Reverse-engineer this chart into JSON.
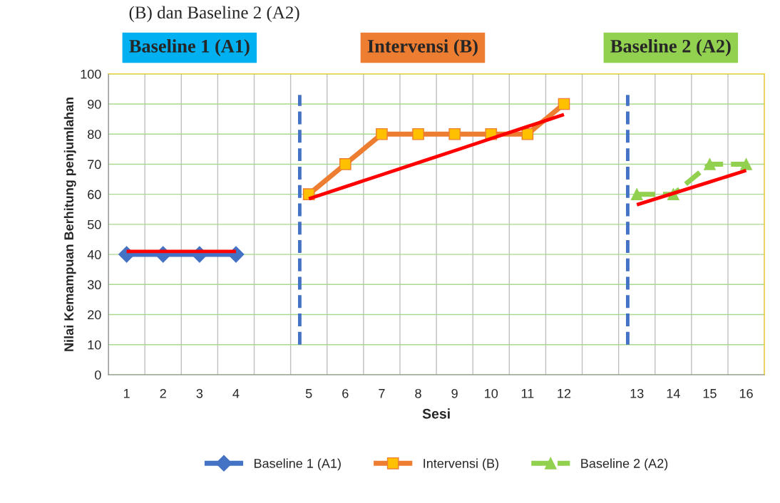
{
  "chart_data": {
    "type": "line",
    "title": "(B) dan Baseline 2 (A2)",
    "xlabel": "Sesi",
    "ylabel": "Nilai Kemampuan Berhitung penjumlahan",
    "categories": [
      "1",
      "2",
      "3",
      "4",
      null,
      "5",
      "6",
      "7",
      "8",
      "9",
      "10",
      "11",
      "12",
      null,
      "13",
      "14",
      "15",
      "16"
    ],
    "series": [
      {
        "name": "Baseline 1 (A1)",
        "color": "#4472c4",
        "marker": "diamond",
        "values": [
          40,
          40,
          40,
          40,
          null,
          null,
          null,
          null,
          null,
          null,
          null,
          null,
          null,
          null,
          null,
          null,
          null,
          null
        ]
      },
      {
        "name": "Intervensi (B)",
        "color": "#ed7d31",
        "marker": "square",
        "values": [
          null,
          null,
          null,
          null,
          null,
          60,
          70,
          80,
          80,
          80,
          80,
          80,
          90,
          null,
          null,
          null,
          null,
          null
        ]
      },
      {
        "name": "Baseline 2 (A2)",
        "color": "#92d050",
        "marker": "triangle",
        "line_style": "dashed",
        "values": [
          null,
          null,
          null,
          null,
          null,
          null,
          null,
          null,
          null,
          null,
          null,
          null,
          null,
          null,
          60,
          60,
          70,
          70
        ]
      },
      {
        "color": "#ff0000",
        "marker": "none",
        "values": [
          41,
          41,
          41,
          41,
          null,
          null,
          null,
          null,
          null,
          null,
          null,
          null,
          null,
          null,
          null,
          null,
          null,
          null
        ]
      },
      {
        "color": "#ff0000",
        "marker": "none",
        "values": [
          null,
          null,
          null,
          null,
          null,
          58.5,
          62.5,
          66.5,
          70.5,
          74.5,
          78.5,
          82.5,
          86.5,
          null,
          null,
          null,
          null,
          null
        ]
      },
      {
        "color": "#ff0000",
        "marker": "none",
        "values": [
          null,
          null,
          null,
          null,
          null,
          null,
          null,
          null,
          null,
          null,
          null,
          null,
          null,
          null,
          56.5,
          60.3,
          64.1,
          67.9
        ]
      }
    ],
    "ref_lines": [
      {
        "axis": "x",
        "value": "5",
        "color": "#4472c4",
        "line_style": "dashed"
      },
      {
        "axis": "x",
        "value": "13",
        "color": "#4472c4",
        "line_style": "dashed"
      }
    ],
    "annotations": [
      "Baseline 1 (A1)",
      "Intervensi (B)",
      "Baseline 2 (A2)"
    ],
    "ylim": [
      0,
      100
    ],
    "yticks": [
      0,
      10,
      20,
      30,
      40,
      50,
      60,
      70,
      80,
      90,
      100
    ],
    "grid": true,
    "legend": "bottom"
  }
}
